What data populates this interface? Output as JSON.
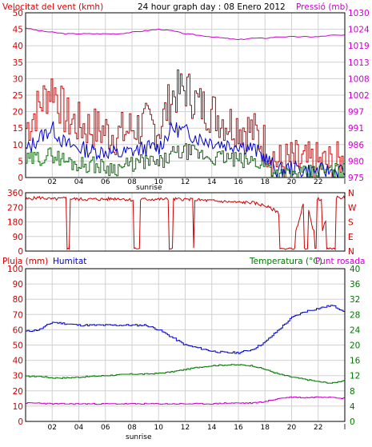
{
  "colors": {
    "background": "#ffffff",
    "frame": "#000000",
    "grid": "#d0d0d0",
    "wind_gust": "#dd0000",
    "wind_avg": "#0000cc",
    "wind_low": "#007700",
    "pressure": "#cc00cc",
    "direction": "#cc0000",
    "humidity": "#0000cc",
    "temperature": "#007700",
    "dewpoint": "#cc00cc",
    "rain": "#cc0000",
    "title": "#000000"
  },
  "header": {
    "wind_label": "Velocitat del vent (kmh)",
    "title": "24 hour graph day : 08 Enero 2012",
    "pressure_label": "Pressió (mb)"
  },
  "lower_header": {
    "rain_label": "Pluja (mm)",
    "humidity_label": "Humitat",
    "temp_label": "Temperatura (°C)",
    "dew_label": "Punt rosada"
  },
  "x_axis": {
    "ticks": [
      "02",
      "04",
      "06",
      "08",
      "10",
      "12",
      "14",
      "16",
      "18",
      "20",
      "22",
      "l"
    ],
    "sunrise_label": "sunrise"
  },
  "chart_data": [
    {
      "type": "line",
      "title": "24 hour graph day : 08 Enero 2012",
      "x": [
        0,
        1,
        2,
        3,
        4,
        5,
        6,
        7,
        8,
        9,
        10,
        11,
        12,
        13,
        14,
        15,
        16,
        17,
        18,
        19,
        20,
        21,
        22,
        23,
        24
      ],
      "left_axis": {
        "label": "Velocitat del vent (kmh)",
        "ylim": [
          0,
          50
        ],
        "ticks": [
          "0",
          "5",
          "10",
          "15",
          "20",
          "25",
          "30",
          "35",
          "40",
          "45",
          "50"
        ]
      },
      "right_axis": {
        "label": "Pressió (mb)",
        "ylim": [
          975,
          1030
        ],
        "ticks": [
          "975",
          "980",
          "986",
          "991",
          "997",
          "1002",
          "1008",
          "1013",
          "1019",
          "1024",
          "1030"
        ]
      },
      "series": [
        {
          "axis": "left",
          "values": [
            15,
            22,
            28,
            18,
            16,
            15,
            14,
            13,
            15,
            16,
            15,
            25,
            27,
            22,
            20,
            17,
            16,
            14,
            10,
            4,
            5,
            4,
            4,
            4,
            4
          ]
        },
        {
          "axis": "left",
          "values": [
            8,
            12,
            15,
            10,
            9,
            8,
            8,
            7,
            8,
            9,
            9,
            15,
            14,
            12,
            11,
            10,
            10,
            9,
            6,
            2,
            3,
            2,
            2,
            2,
            2
          ]
        },
        {
          "axis": "left",
          "values": [
            5,
            6,
            7,
            5,
            4,
            4,
            3,
            3,
            4,
            5,
            4,
            7,
            8,
            7,
            6,
            6,
            5,
            5,
            4,
            1,
            1,
            1,
            2,
            2,
            2
          ]
        },
        {
          "axis": "right",
          "values": [
            1025,
            1024,
            1023.5,
            1023,
            1023,
            1023,
            1023,
            1023,
            1023.5,
            1024,
            1024.5,
            1024,
            1023,
            1022.5,
            1022,
            1021.5,
            1021,
            1021.5,
            1021.5,
            1022,
            1022,
            1022,
            1022,
            1022.5,
            1022.5
          ]
        }
      ]
    },
    {
      "type": "line",
      "x": [
        0,
        1,
        2,
        3,
        4,
        5,
        6,
        7,
        8,
        9,
        10,
        11,
        12,
        13,
        14,
        15,
        16,
        17,
        18,
        19,
        20,
        21,
        22,
        23,
        24
      ],
      "ylim": [
        0,
        360
      ],
      "y_ticks": [
        "0",
        "90",
        "180",
        "270",
        "360"
      ],
      "right_labels": [
        "N",
        "W",
        "S",
        "E",
        "N"
      ],
      "series": [
        {
          "values": [
            320,
            330,
            320,
            325,
            320,
            320,
            320,
            325,
            315,
            320,
            320,
            320,
            320,
            315,
            310,
            305,
            300,
            300,
            280,
            240,
            20,
            330,
            20,
            330,
            330
          ]
        }
      ]
    },
    {
      "type": "line",
      "x": [
        0,
        1,
        2,
        3,
        4,
        5,
        6,
        7,
        8,
        9,
        10,
        11,
        12,
        13,
        14,
        15,
        16,
        17,
        18,
        19,
        20,
        21,
        22,
        23,
        24
      ],
      "left_axis": {
        "label": "Pluja (mm)",
        "ylim": [
          0,
          100
        ],
        "ticks": [
          "0",
          "10",
          "20",
          "30",
          "40",
          "50",
          "60",
          "70",
          "80",
          "90",
          "100"
        ]
      },
      "right_axis": {
        "label": "Temperatura (°C)",
        "ylim": [
          0,
          40
        ],
        "ticks": [
          "0",
          "4",
          "8",
          "12",
          "16",
          "20",
          "24",
          "28",
          "32",
          "36",
          "40"
        ]
      },
      "series": [
        {
          "axis": "left",
          "name": "Humitat",
          "values": [
            59,
            60,
            65,
            64,
            63,
            63,
            63,
            63,
            63,
            63,
            60,
            55,
            50,
            48,
            46,
            45,
            45,
            47,
            52,
            60,
            68,
            72,
            74,
            76,
            72
          ]
        },
        {
          "axis": "right",
          "name": "Temperatura (°C)",
          "values": [
            11.8,
            11.8,
            11.4,
            11.4,
            11.6,
            11.8,
            12,
            12.2,
            12.4,
            12.4,
            12.6,
            13,
            13.6,
            14.2,
            14.6,
            14.8,
            14.8,
            14.6,
            13.6,
            12.4,
            11.6,
            11,
            10.4,
            10,
            10.8
          ]
        },
        {
          "axis": "right",
          "name": "Punt rosada",
          "values": [
            4.8,
            4.8,
            4.6,
            4.6,
            4.6,
            4.6,
            4.6,
            4.6,
            4.6,
            4.6,
            4.6,
            4.6,
            4.6,
            4.6,
            4.6,
            4.8,
            4.8,
            4.8,
            5.2,
            6,
            6.4,
            6.2,
            6.4,
            6.4,
            6
          ]
        },
        {
          "axis": "left",
          "name": "Pluja (mm)",
          "values": [
            0,
            0,
            0,
            0,
            0,
            0,
            0,
            0,
            0,
            0,
            0,
            0,
            0,
            0,
            0,
            0,
            0,
            0,
            0,
            0,
            0,
            0,
            0,
            0,
            0
          ]
        }
      ]
    }
  ]
}
